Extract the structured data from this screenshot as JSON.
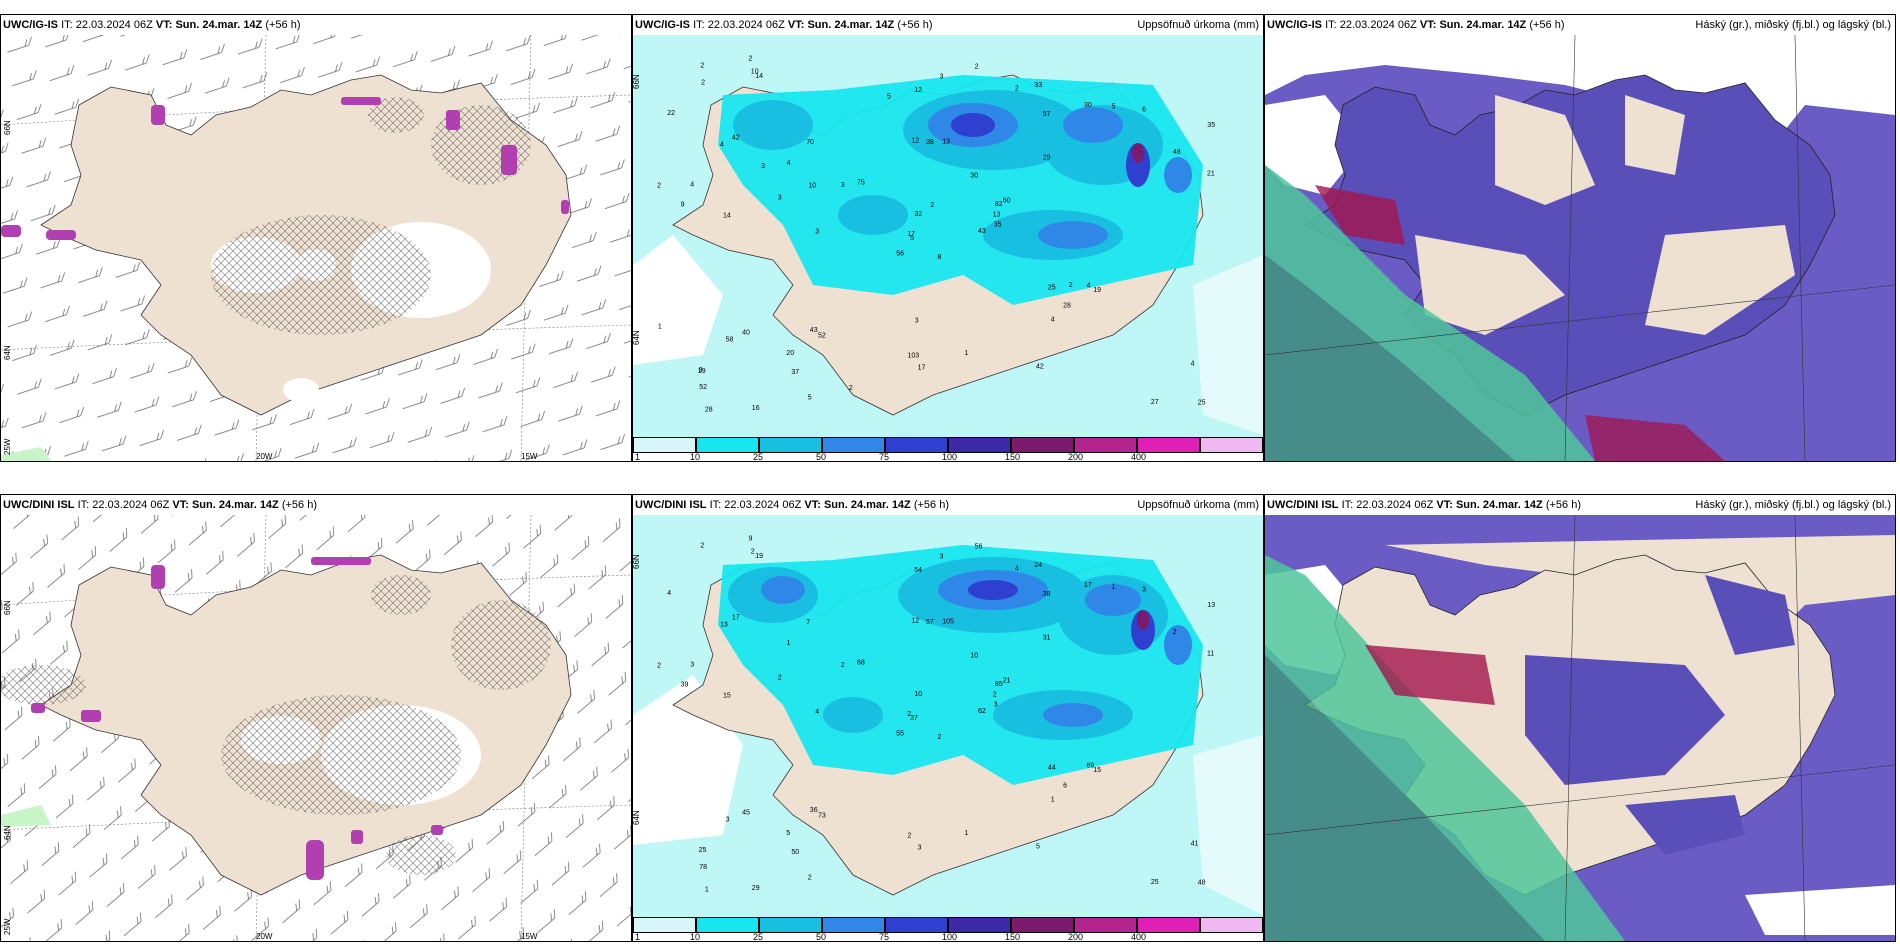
{
  "panels": [
    {
      "id": "top-left",
      "source": "UWC/IG-IS",
      "it_label": "IT:",
      "it_value": "22.03.2024 06Z",
      "vt_label": "VT:",
      "vt_value": "Sun. 24.mar. 14Z",
      "lead": "(+56 h)",
      "right_title": "",
      "axis_labels": {
        "lat1": "66N",
        "lat2": "64N",
        "lat3": "25W",
        "lon1": "20W",
        "lon2": "15W"
      }
    },
    {
      "id": "top-middle",
      "source": "UWC/IG-IS",
      "it_label": "IT:",
      "it_value": "22.03.2024 06Z",
      "vt_label": "VT:",
      "vt_value": "Sun. 24.mar. 14Z",
      "lead": "(+56 h)",
      "right_title": "Uppsöfnuð úrkoma (mm)",
      "axis_labels": {
        "lat1": "66N",
        "lat2": "64N"
      }
    },
    {
      "id": "top-right",
      "source": "UWC/IG-IS",
      "it_label": "IT:",
      "it_value": "22.03.2024 06Z",
      "vt_label": "VT:",
      "vt_value": "Sun. 24.mar. 14Z",
      "lead": "(+56 h)",
      "right_title": "Háský (gr.), miðský (fj.bl.) og lágský (bl.)"
    },
    {
      "id": "bottom-left",
      "source": "UWC/DINI ISL",
      "it_label": "IT:",
      "it_value": "22.03.2024 06Z",
      "vt_label": "VT:",
      "vt_value": "Sun. 24.mar. 14Z",
      "lead": "(+56 h)",
      "right_title": "",
      "axis_labels": {
        "lat1": "66N",
        "lat2": "64N",
        "lat3": "25W",
        "lon1": "20W",
        "lon2": "15W"
      }
    },
    {
      "id": "bottom-middle",
      "source": "UWC/DINI ISL",
      "it_label": "IT:",
      "it_value": "22.03.2024 06Z",
      "vt_label": "VT:",
      "vt_value": "Sun. 24.mar. 14Z",
      "lead": "(+56 h)",
      "right_title": "Uppsöfnuð úrkoma (mm)",
      "axis_labels": {
        "lat1": "66N",
        "lat2": "64N"
      }
    },
    {
      "id": "bottom-right",
      "source": "UWC/DINI ISL",
      "it_label": "IT:",
      "it_value": "22.03.2024 06Z",
      "vt_label": "VT:",
      "vt_value": "Sun. 24.mar. 14Z",
      "lead": "(+56 h)",
      "right_title": "Háský (gr.), miðský (fj.bl.) og lágský (bl.)"
    }
  ],
  "precip_legend": {
    "ticks": [
      "1",
      "10",
      "25",
      "50",
      "75",
      "100",
      "150",
      "200",
      "400"
    ],
    "colors": [
      "#d8f6f8",
      "#17e6ef",
      "#19bfe0",
      "#2f88e8",
      "#2f3fd0",
      "#3a2aa8",
      "#7a1b6e",
      "#b5238e",
      "#e01fb6",
      "#f0b8f0"
    ]
  },
  "precip_labels_top": [
    "8",
    "4",
    "5",
    "3",
    "82",
    "52",
    "33",
    "13",
    "57",
    "43",
    "14",
    "25",
    "14",
    "35",
    "56",
    "29",
    "16",
    "12",
    "30",
    "40",
    "75",
    "52",
    "37",
    "38",
    "60",
    "19",
    "42",
    "12",
    "9",
    "25",
    "21",
    "17",
    "103",
    "32",
    "70",
    "30",
    "43",
    "27",
    "4",
    "4",
    "2",
    "3",
    "3",
    "4",
    "5",
    "2",
    "13",
    "28",
    "17",
    "35",
    "58",
    "48",
    "22",
    "28",
    "42",
    "20",
    "10",
    "2",
    "1",
    "6",
    "3",
    "3",
    "4",
    "4",
    "5",
    "2",
    "2",
    "5",
    "2",
    "1",
    "3",
    "2",
    "2",
    "10",
    "19",
    "2",
    "3"
  ],
  "precip_labels_bottom": [
    "2",
    "13",
    "37",
    "25",
    "85",
    "73",
    "24",
    "105",
    "38",
    "62",
    "19",
    "48",
    "15",
    "13",
    "55",
    "31",
    "29",
    "12",
    "10",
    "45",
    "68",
    "78",
    "50",
    "57",
    "21",
    "15",
    "17",
    "54",
    "39",
    "44",
    "11",
    "2",
    "2",
    "10",
    "7",
    "17",
    "36",
    "25",
    "41",
    "69",
    "56",
    "2",
    "2",
    "1",
    "2",
    "2",
    "2",
    "1",
    "3",
    "3",
    "3",
    "2",
    "4",
    "6",
    "5",
    "5",
    "2",
    "2",
    "1",
    "3",
    "3",
    "4",
    "3",
    "1",
    "1",
    "9",
    "4"
  ],
  "colors": {
    "land": "#efe1d2",
    "ocean": "#ffffff",
    "precip_bg": "#bff6f6",
    "cloud_high": "#49c48a",
    "cloud_mid": "#6f57b7",
    "cloud_low": "#2f46e2",
    "purple_precip": "#b03fb0"
  }
}
